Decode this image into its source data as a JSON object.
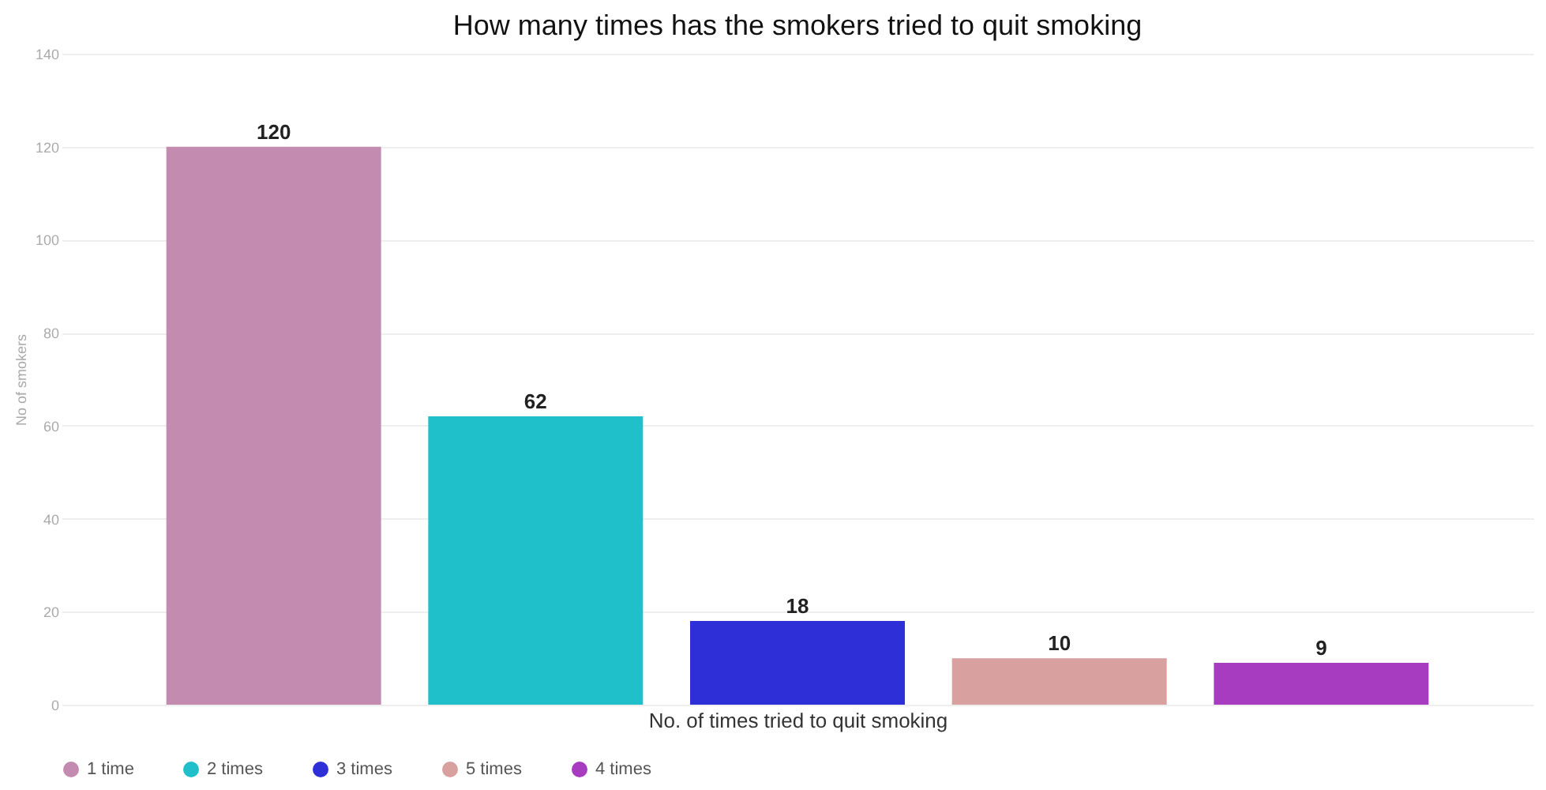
{
  "chart_data": {
    "type": "bar",
    "title": "How many times has the smokers tried to quit smoking",
    "xlabel": "No. of times tried to quit smoking",
    "ylabel": "No of smokers",
    "categories": [
      null,
      null,
      null,
      null,
      null
    ],
    "series": [
      {
        "name": "1 time",
        "color": "#c48bb1",
        "values": [
          120,
          null,
          null,
          null,
          null
        ]
      },
      {
        "name": "2 times",
        "color": "#1fc0c9",
        "values": [
          null,
          62,
          null,
          null,
          null
        ]
      },
      {
        "name": "3 times",
        "color": "#2f2fd8",
        "values": [
          null,
          null,
          18,
          null,
          null
        ]
      },
      {
        "name": "5 times",
        "color": "#d9a0a0",
        "values": [
          null,
          null,
          null,
          10,
          null
        ]
      },
      {
        "name": "4 times",
        "color": "#a83cc0",
        "values": [
          null,
          null,
          null,
          null,
          9
        ]
      }
    ],
    "ylim": [
      0,
      140
    ],
    "yticks": [
      0,
      20,
      40,
      60,
      80,
      100,
      120,
      140
    ],
    "grid": "y",
    "legend": "bottom",
    "tick_labels": "y",
    "data_labels": true,
    "marker": "circle"
  }
}
